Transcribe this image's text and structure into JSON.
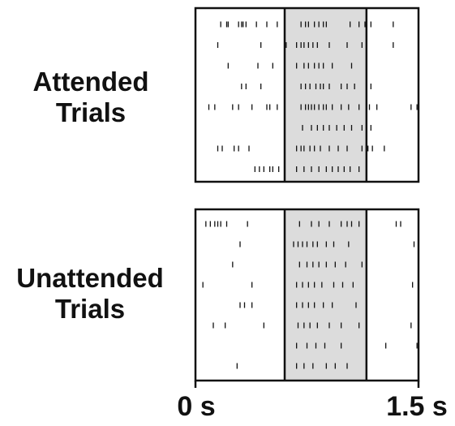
{
  "labels": {
    "attended_line1": "Attended",
    "attended_line2": "Trials",
    "unattended_line1": "Unattended",
    "unattended_line2": "Trials",
    "time_start": "0 s",
    "time_end": "1.5 s"
  },
  "colors": {
    "frame": "#111111",
    "spike": "#111111",
    "highlight": "#dcdcdc"
  },
  "chart_data": [
    {
      "type": "raster",
      "group": "Attended",
      "x_unit": "s",
      "xlim": [
        0,
        1.5
      ],
      "highlight_window": [
        0.6,
        1.15
      ],
      "trials": [
        [
          0.17,
          0.21,
          0.22,
          0.29,
          0.31,
          0.32,
          0.34,
          0.41,
          0.48,
          0.55,
          0.71,
          0.74,
          0.76,
          0.8,
          0.83,
          0.86,
          0.88,
          1.04,
          1.1,
          1.14,
          1.18,
          1.33
        ],
        [
          0.15,
          0.44,
          0.61,
          0.68,
          0.71,
          0.73,
          0.76,
          0.79,
          0.82,
          0.9,
          1.02,
          1.12,
          1.33
        ],
        [
          0.22,
          0.42,
          0.52,
          0.68,
          0.73,
          0.76,
          0.8,
          0.83,
          0.86,
          0.92,
          1.05,
          1.15
        ],
        [
          0.31,
          0.34,
          0.44,
          0.71,
          0.74,
          0.77,
          0.81,
          0.84,
          0.86,
          0.9,
          0.98,
          1.02,
          1.07,
          1.18
        ],
        [
          0.09,
          0.13,
          0.25,
          0.29,
          0.38,
          0.48,
          0.5,
          0.55,
          0.71,
          0.74,
          0.76,
          0.78,
          0.8,
          0.83,
          0.86,
          0.88,
          0.92,
          0.98,
          1.03,
          1.1,
          1.17,
          1.22,
          1.45,
          1.49
        ],
        [
          0.72,
          0.78,
          0.82,
          0.86,
          0.9,
          0.95,
          1.0,
          1.05,
          1.12,
          1.18
        ],
        [
          0.15,
          0.18,
          0.26,
          0.29,
          0.36,
          0.68,
          0.71,
          0.73,
          0.77,
          0.8,
          0.84,
          0.9,
          0.96,
          1.02,
          1.12,
          1.16,
          1.19,
          1.27
        ],
        [
          0.4,
          0.43,
          0.46,
          0.5,
          0.52,
          0.56,
          0.68,
          0.73,
          0.78,
          0.83,
          0.88,
          0.92,
          0.96,
          1.0,
          1.04,
          1.1
        ]
      ]
    },
    {
      "type": "raster",
      "group": "Unattended",
      "x_unit": "s",
      "xlim": [
        0,
        1.5
      ],
      "highlight_window": [
        0.6,
        1.15
      ],
      "trials": [
        [
          0.07,
          0.1,
          0.13,
          0.15,
          0.17,
          0.21,
          0.35,
          0.7,
          0.78,
          0.83,
          0.9,
          0.98,
          1.02,
          1.05,
          1.1,
          1.35,
          1.38
        ],
        [
          0.3,
          0.66,
          0.69,
          0.72,
          0.75,
          0.79,
          0.82,
          0.88,
          0.93,
          1.03,
          1.47
        ],
        [
          0.25,
          0.7,
          0.75,
          0.79,
          0.83,
          0.88,
          0.94,
          1.01,
          1.12
        ],
        [
          0.05,
          0.38,
          0.68,
          0.72,
          0.76,
          0.8,
          0.85,
          0.93,
          0.99,
          1.06,
          1.46
        ],
        [
          0.3,
          0.33,
          0.38,
          0.68,
          0.72,
          0.76,
          0.8,
          0.86,
          0.92,
          1.08
        ],
        [
          0.12,
          0.2,
          0.46,
          0.69,
          0.73,
          0.77,
          0.82,
          0.9,
          0.98,
          1.1,
          1.45
        ],
        [
          0.68,
          0.75,
          0.81,
          0.87,
          0.98,
          1.28,
          1.49
        ],
        [
          0.28,
          0.68,
          0.73,
          0.79,
          0.88,
          0.94,
          1.02
        ]
      ]
    }
  ]
}
